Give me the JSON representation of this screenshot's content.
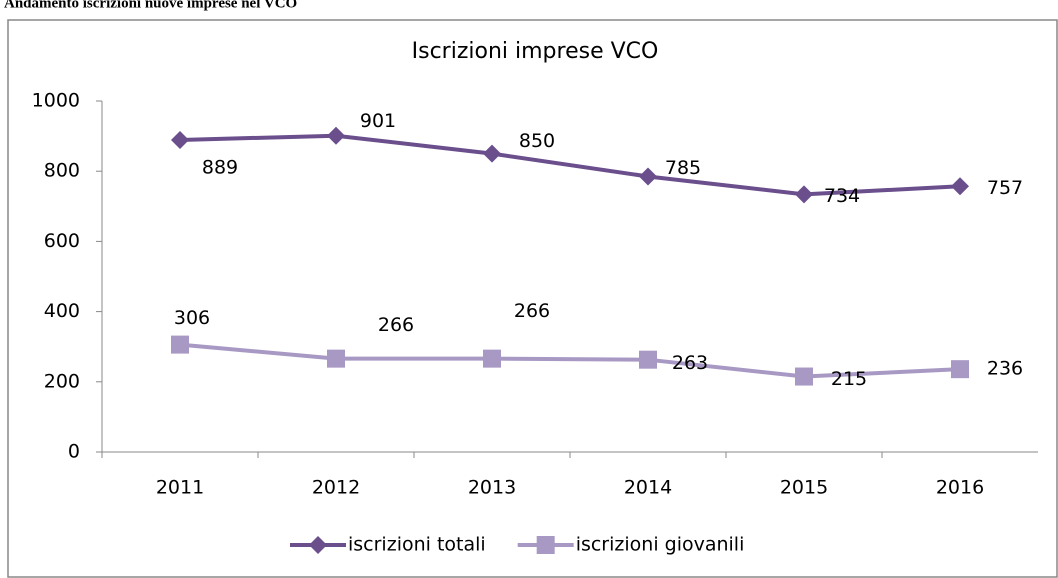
{
  "caption": "Andamento iscrizioni nuove imprese nel VCO",
  "chart_data": {
    "type": "line",
    "title": "Iscrizioni imprese VCO",
    "categories": [
      "2011",
      "2012",
      "2013",
      "2014",
      "2015",
      "2016"
    ],
    "series": [
      {
        "name": "iscrizioni totali",
        "color": "#6a4f8c",
        "marker": "diamond",
        "values": [
          889,
          901,
          850,
          785,
          734,
          757
        ]
      },
      {
        "name": "iscrizioni giovanili",
        "color": "#a899c4",
        "marker": "square",
        "values": [
          306,
          266,
          266,
          263,
          215,
          236
        ]
      }
    ],
    "ylim": [
      0,
      1000
    ],
    "yticks": [
      0,
      200,
      400,
      600,
      800,
      1000
    ],
    "grid": false,
    "legend": "bottom"
  }
}
